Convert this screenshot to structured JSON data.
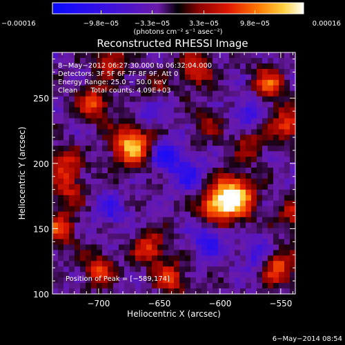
{
  "chart_data": {
    "type": "heatmap",
    "title": "Reconstructed RHESSI Image",
    "xlabel": "Heliocentric X (arcsec)",
    "ylabel": "Heliocentric Y (arcsec)",
    "xlim": [
      -738,
      -538
    ],
    "ylim": [
      100,
      285
    ],
    "x_ticks": [
      -700,
      -650,
      -600,
      -550
    ],
    "x_tick_labels": [
      "−700",
      "−650",
      "−600",
      "−550"
    ],
    "y_ticks": [
      100,
      150,
      200,
      250
    ],
    "y_tick_labels": [
      "100",
      "150",
      "200",
      "250"
    ],
    "colorbar": {
      "min": -0.00016,
      "max": 0.00016,
      "ticks": [
        -0.00016,
        -9.8e-05,
        -3.3e-05,
        3.3e-05,
        9.8e-05,
        0.00016
      ],
      "tick_labels": [
        "−0.00016",
        "−9.8e−05",
        "−3.3e−05",
        "3.3e−05",
        "9.8e−05",
        "0.00016"
      ],
      "units": "(photons cm⁻² s⁻¹ asec⁻²)"
    },
    "info_lines": [
      "8−May−2012 06:27:30.000 to 06:32:04.000",
      "Detectors: 3F 5F 6F 7F 8F 9F, Att 0",
      "Energy Range: 25.0 − 50.0 keV",
      "Clean      Total counts: 4.09E+03"
    ],
    "peak_label": "Position of Peak = [−589,174]",
    "peak": [
      -589,
      174
    ],
    "blobs": [
      {
        "x": -589,
        "y": 174,
        "amp": 1.0
      },
      {
        "x": -605,
        "y": 168,
        "amp": 0.55
      },
      {
        "x": -672,
        "y": 214,
        "amp": 0.8
      },
      {
        "x": -704,
        "y": 246,
        "amp": 0.5
      },
      {
        "x": -728,
        "y": 200,
        "amp": 0.45
      },
      {
        "x": -733,
        "y": 150,
        "amp": 0.5
      },
      {
        "x": -725,
        "y": 180,
        "amp": 0.35
      },
      {
        "x": -560,
        "y": 260,
        "amp": 0.55
      },
      {
        "x": -545,
        "y": 230,
        "amp": 0.5
      },
      {
        "x": -552,
        "y": 120,
        "amp": 0.55
      },
      {
        "x": -540,
        "y": 160,
        "amp": 0.35
      },
      {
        "x": -658,
        "y": 135,
        "amp": 0.5
      },
      {
        "x": -640,
        "y": 112,
        "amp": 0.45
      },
      {
        "x": -700,
        "y": 118,
        "amp": 0.45
      },
      {
        "x": -620,
        "y": 272,
        "amp": 0.45
      },
      {
        "x": -690,
        "y": 278,
        "amp": 0.4
      },
      {
        "x": -575,
        "y": 215,
        "amp": 0.3
      },
      {
        "x": -610,
        "y": 230,
        "amp": 0.25
      },
      {
        "x": -655,
        "y": 258,
        "amp": 0.25
      },
      {
        "x": -645,
        "y": 205,
        "amp": -0.45
      },
      {
        "x": -625,
        "y": 190,
        "amp": -0.35
      },
      {
        "x": -610,
        "y": 140,
        "amp": -0.4
      },
      {
        "x": -575,
        "y": 240,
        "amp": -0.3
      },
      {
        "x": -690,
        "y": 165,
        "amp": -0.3
      },
      {
        "x": -660,
        "y": 240,
        "amp": -0.3
      },
      {
        "x": -570,
        "y": 130,
        "amp": -0.3
      }
    ]
  },
  "footer": {
    "timestamp": "6−May−2014 08:54"
  }
}
